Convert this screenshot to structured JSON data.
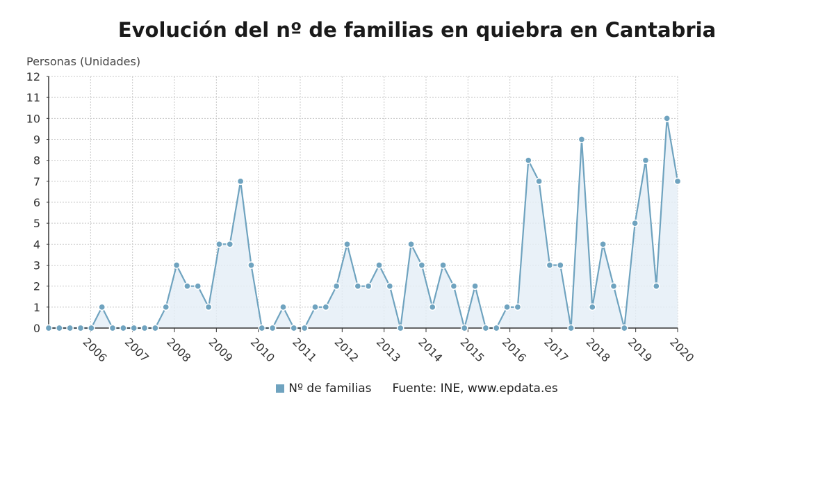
{
  "chart_data": {
    "type": "line",
    "title": "Evolución del nº de familias en quiebra en Cantabria",
    "ylabel": "Personas (Unidades)",
    "xlabel": "",
    "ylim": [
      0,
      12
    ],
    "yticks": [
      0,
      1,
      2,
      3,
      4,
      5,
      6,
      7,
      8,
      9,
      10,
      11,
      12
    ],
    "xticks": [
      "2006",
      "2007",
      "2008",
      "2009",
      "2010",
      "2011",
      "2012",
      "2013",
      "2014",
      "2015",
      "2016",
      "2017",
      "2018",
      "2019",
      "2020"
    ],
    "grid": true,
    "area_fill": true,
    "colors": {
      "line": "#6fa3bf",
      "marker": "#6fa3bf",
      "fill": "#e4eef6",
      "grid": "#c8c8c8"
    },
    "series": [
      {
        "name": "Nº de familias",
        "values": [
          0,
          0,
          0,
          0,
          0,
          1,
          0,
          0,
          0,
          0,
          0,
          1,
          3,
          2,
          2,
          1,
          4,
          4,
          7,
          3,
          0,
          0,
          1,
          0,
          0,
          1,
          1,
          2,
          4,
          2,
          2,
          3,
          2,
          0,
          4,
          3,
          1,
          3,
          2,
          0,
          2,
          0,
          0,
          1,
          1,
          8,
          7,
          3,
          3,
          0,
          9,
          1,
          4,
          2,
          0,
          5,
          8,
          2,
          10,
          7
        ]
      }
    ]
  },
  "legend": {
    "series_label": "Nº de familias",
    "source": "Fuente: INE, www.epdata.es"
  }
}
